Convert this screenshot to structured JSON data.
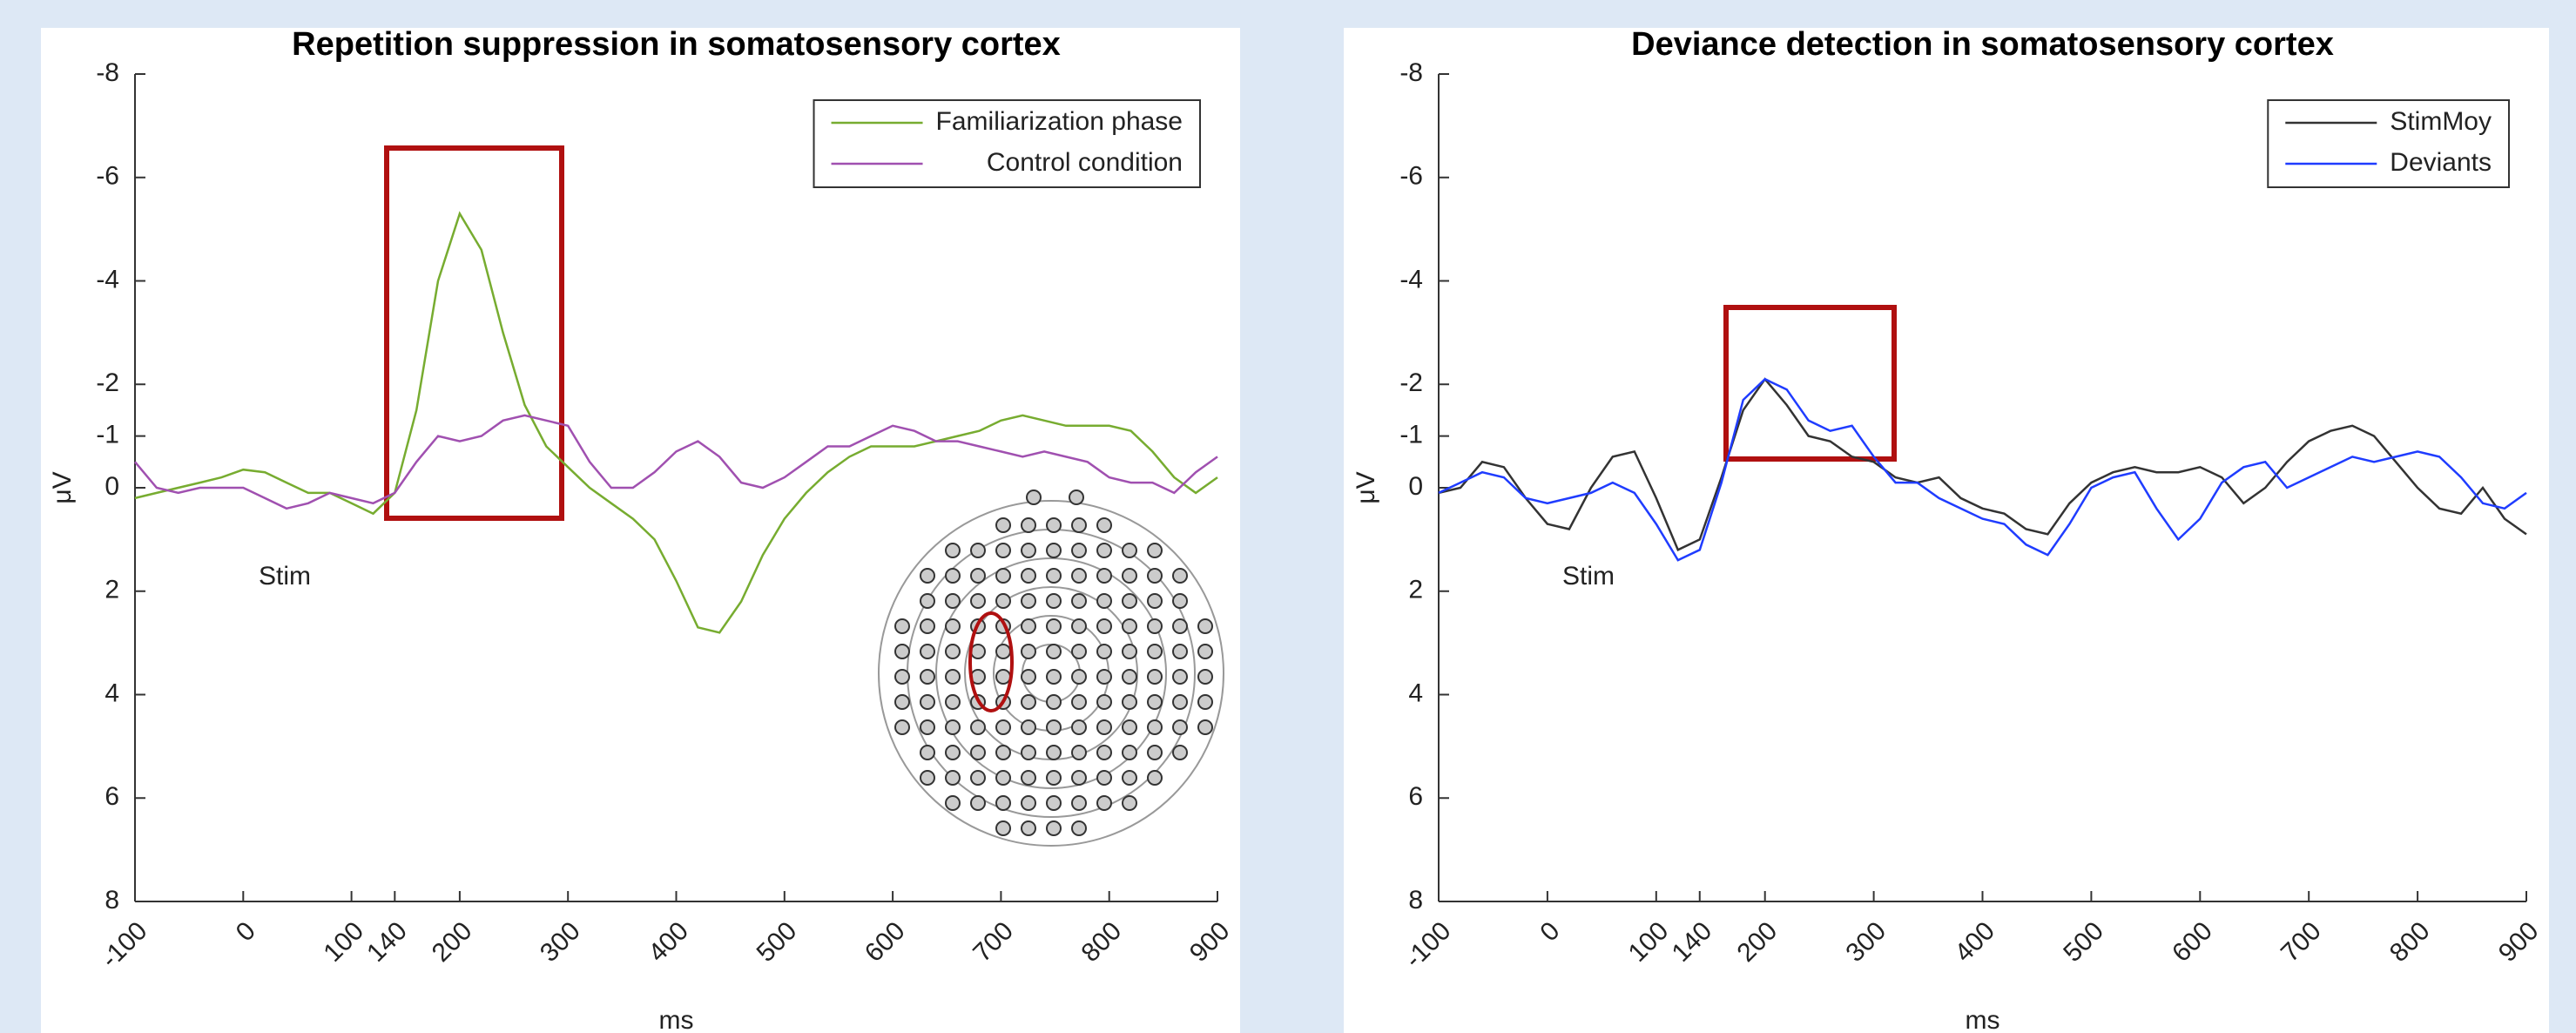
{
  "chart_data": [
    {
      "type": "line",
      "title": "Repetition suppression in somatosensory cortex",
      "x_label": "ms",
      "y_label": "μV",
      "annotation": "Stim",
      "xlim": [
        -100,
        900
      ],
      "xticks": [
        -100,
        0,
        100,
        140,
        200,
        300,
        400,
        500,
        600,
        700,
        800,
        900
      ],
      "ylim": [
        -8,
        8
      ],
      "y_reversed": true,
      "yticks": [
        -8,
        -6,
        -4,
        -2,
        -1,
        0,
        2,
        4,
        6,
        8
      ],
      "legend": "upper right",
      "x": [
        -100,
        -80,
        -60,
        -40,
        -20,
        0,
        20,
        40,
        60,
        80,
        100,
        120,
        140,
        160,
        180,
        200,
        220,
        240,
        260,
        280,
        300,
        320,
        340,
        360,
        380,
        400,
        420,
        440,
        460,
        480,
        500,
        520,
        540,
        560,
        580,
        600,
        620,
        640,
        660,
        680,
        700,
        720,
        740,
        760,
        780,
        800,
        820,
        840,
        860,
        880,
        900
      ],
      "series": [
        {
          "name": "Familiarization phase",
          "color": "#77ac30",
          "values": [
            0.2,
            0.1,
            0.0,
            -0.1,
            -0.2,
            -0.35,
            -0.3,
            -0.1,
            0.1,
            0.1,
            0.3,
            0.5,
            0.1,
            -1.5,
            -4.0,
            -5.3,
            -4.6,
            -3.0,
            -1.6,
            -0.8,
            -0.4,
            0.0,
            0.3,
            0.6,
            1.0,
            1.8,
            2.7,
            2.8,
            2.2,
            1.3,
            0.6,
            0.1,
            -0.3,
            -0.6,
            -0.8,
            -0.8,
            -0.8,
            -0.9,
            -1.0,
            -1.1,
            -1.3,
            -1.4,
            -1.3,
            -1.2,
            -1.2,
            -1.2,
            -1.1,
            -0.7,
            -0.2,
            0.1,
            -0.2
          ]
        },
        {
          "name": "Control condition",
          "color": "#a050b0",
          "values": [
            -0.5,
            0.0,
            0.1,
            0.0,
            0.0,
            0.0,
            0.2,
            0.4,
            0.3,
            0.1,
            0.2,
            0.3,
            0.1,
            -0.5,
            -1.0,
            -0.9,
            -1.0,
            -1.3,
            -1.4,
            -1.3,
            -1.2,
            -0.5,
            0.0,
            0.0,
            -0.3,
            -0.7,
            -0.9,
            -0.6,
            -0.1,
            0.0,
            -0.2,
            -0.5,
            -0.8,
            -0.8,
            -1.0,
            -1.2,
            -1.1,
            -0.9,
            -0.9,
            -0.8,
            -0.7,
            -0.6,
            -0.7,
            -0.6,
            -0.5,
            -0.2,
            -0.1,
            -0.1,
            0.1,
            -0.3,
            -0.6
          ]
        }
      ]
    },
    {
      "type": "line",
      "title": "Deviance detection in somatosensory cortex",
      "x_label": "ms",
      "y_label": "μV",
      "annotation": "Stim",
      "xlim": [
        -100,
        900
      ],
      "xticks": [
        -100,
        0,
        100,
        140,
        200,
        300,
        400,
        500,
        600,
        700,
        800,
        900
      ],
      "ylim": [
        -8,
        8
      ],
      "y_reversed": true,
      "yticks": [
        -8,
        -6,
        -4,
        -2,
        -1,
        0,
        2,
        4,
        6,
        8
      ],
      "legend": "upper right",
      "x": [
        -100,
        -80,
        -60,
        -40,
        -20,
        0,
        20,
        40,
        60,
        80,
        100,
        120,
        140,
        160,
        180,
        200,
        220,
        240,
        260,
        280,
        300,
        320,
        340,
        360,
        380,
        400,
        420,
        440,
        460,
        480,
        500,
        520,
        540,
        560,
        580,
        600,
        620,
        640,
        660,
        680,
        700,
        720,
        740,
        760,
        780,
        800,
        820,
        840,
        860,
        880,
        900
      ],
      "series": [
        {
          "name": "StimMoy",
          "color": "#333333",
          "values": [
            0.1,
            0.0,
            -0.5,
            -0.4,
            0.2,
            0.7,
            0.8,
            0.0,
            -0.6,
            -0.7,
            0.2,
            1.2,
            1.0,
            -0.2,
            -1.5,
            -2.1,
            -1.6,
            -1.0,
            -0.9,
            -0.6,
            -0.5,
            -0.2,
            -0.1,
            -0.2,
            0.2,
            0.4,
            0.5,
            0.8,
            0.9,
            0.3,
            -0.1,
            -0.3,
            -0.4,
            -0.3,
            -0.3,
            -0.4,
            -0.2,
            0.3,
            0.0,
            -0.5,
            -0.9,
            -1.1,
            -1.2,
            -1.0,
            -0.5,
            0.0,
            0.4,
            0.5,
            0.0,
            0.6,
            0.9
          ]
        },
        {
          "name": "Deviants",
          "color": "#1f3cff",
          "values": [
            0.1,
            -0.1,
            -0.3,
            -0.2,
            0.2,
            0.3,
            0.2,
            0.1,
            -0.1,
            0.1,
            0.7,
            1.4,
            1.2,
            -0.1,
            -1.7,
            -2.1,
            -1.9,
            -1.3,
            -1.1,
            -1.2,
            -0.6,
            -0.1,
            -0.1,
            0.2,
            0.4,
            0.6,
            0.7,
            1.1,
            1.3,
            0.7,
            0.0,
            -0.2,
            -0.3,
            0.4,
            1.0,
            0.6,
            -0.1,
            -0.4,
            -0.5,
            0.0,
            -0.2,
            -0.4,
            -0.6,
            -0.5,
            -0.6,
            -0.7,
            -0.6,
            -0.2,
            0.3,
            0.4,
            0.1
          ]
        }
      ]
    }
  ]
}
